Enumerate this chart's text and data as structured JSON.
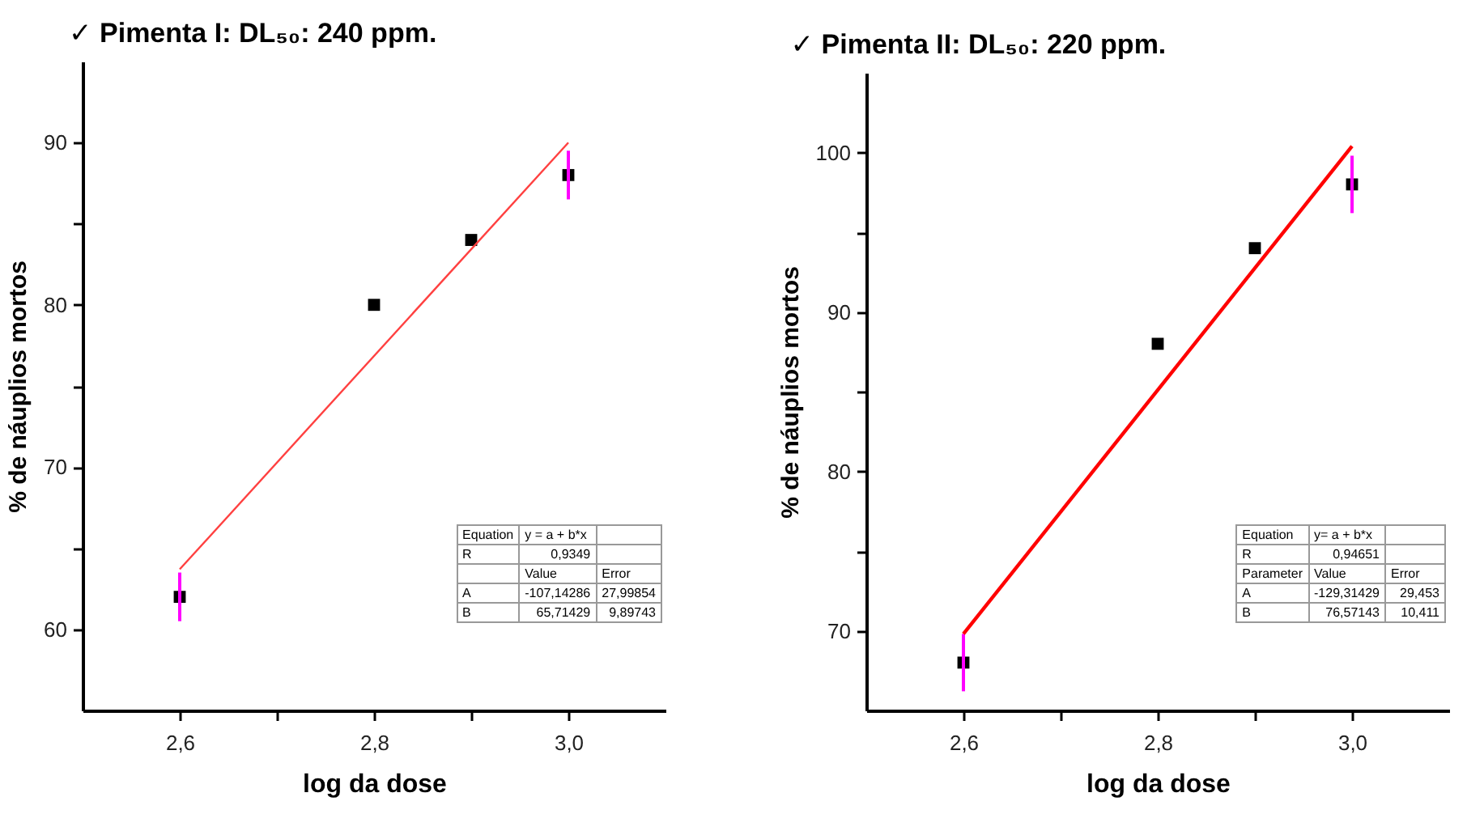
{
  "chart_data": [
    {
      "type": "scatter",
      "title": "✓ Pimenta I: DL₅₀: 240 ppm.",
      "xlabel": "log da dose",
      "ylabel": "% de náuplios mortos",
      "xlim": [
        2.5,
        3.1
      ],
      "ylim": [
        55,
        95
      ],
      "xticks": [
        {
          "value": 2.6,
          "label": "2,6"
        },
        {
          "value": 2.7,
          "label": null
        },
        {
          "value": 2.8,
          "label": "2,8"
        },
        {
          "value": 2.9,
          "label": null
        },
        {
          "value": 3.0,
          "label": "3,0"
        }
      ],
      "yticks": [
        60,
        {
          "value": 65,
          "label": null
        },
        70,
        {
          "value": 75,
          "label": null
        },
        80,
        {
          "value": 85,
          "label": null
        },
        90
      ],
      "series": [
        {
          "color": "#000000",
          "marker": "square",
          "x": [
            2.6,
            2.8,
            2.9,
            3.0
          ],
          "values": [
            62,
            80,
            84,
            88
          ],
          "errors": [
            1.5,
            null,
            null,
            1.5
          ]
        },
        {
          "type": "line",
          "color": "#ff4040",
          "x": [
            2.6,
            3.0
          ],
          "values": [
            63.7,
            90.0
          ]
        }
      ],
      "annotations": [
        "Equation\ty = a + b*x\t",
        "R\t0,9349\t",
        "\tValue\tError",
        "A\t-107,14286\t27,99854",
        "B\t65,71429\t9,89743"
      ]
    },
    {
      "type": "scatter",
      "title": "✓ Pimenta II: DL₅₀: 220 ppm.",
      "xlabel": "log da dose",
      "ylabel": "% de náuplios mortos",
      "xlim": [
        2.5,
        3.1
      ],
      "ylim": [
        65,
        105
      ],
      "xticks": [
        {
          "value": 2.6,
          "label": "2,6"
        },
        {
          "value": 2.7,
          "label": null
        },
        {
          "value": 2.8,
          "label": "2,8"
        },
        {
          "value": 2.9,
          "label": null
        },
        {
          "value": 3.0,
          "label": "3,0"
        }
      ],
      "yticks": [
        70,
        {
          "value": 75,
          "label": null
        },
        80,
        {
          "value": 85,
          "label": null
        },
        90,
        {
          "value": 95,
          "label": null
        },
        100
      ],
      "series": [
        {
          "color": "#000000",
          "marker": "square",
          "x": [
            2.6,
            2.8,
            2.9,
            3.0
          ],
          "values": [
            68,
            88,
            94,
            98
          ],
          "errors": [
            1.8,
            null,
            null,
            1.8
          ]
        },
        {
          "type": "line",
          "color": "#ff0000",
          "x": [
            2.6,
            3.0
          ],
          "values": [
            69.8,
            100.4
          ]
        }
      ],
      "annotations": [
        "Equation\ty= a + b*x\t",
        "R\t0,94651\t",
        "Parameter\tValue\tError",
        "A\t-129,31429\t29,453",
        "B\t76,57143\t10,411"
      ]
    }
  ]
}
